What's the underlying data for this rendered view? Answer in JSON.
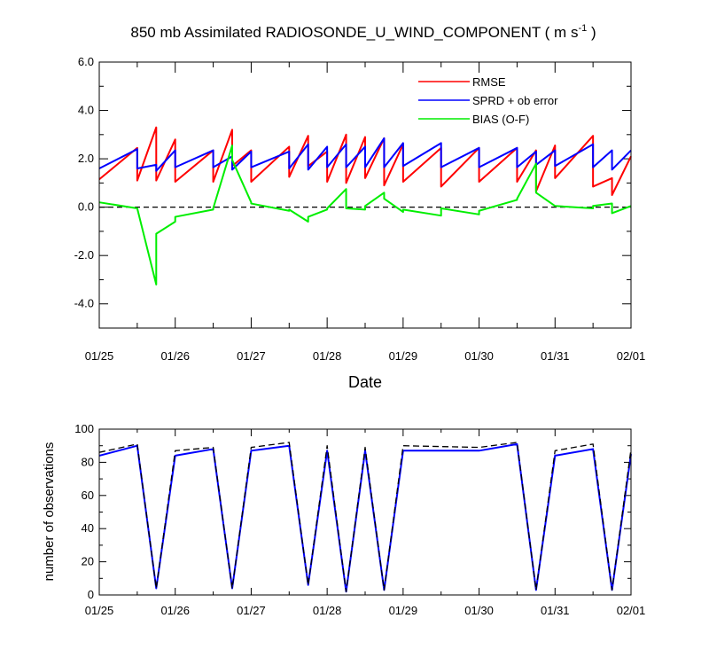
{
  "chart_data": [
    {
      "type": "line",
      "title": "850 mb Assimilated RADIOSONDE_U_WIND_COMPONENT ( m s",
      "title_exponent": "-1",
      "title_suffix": " )",
      "xlabel": "Date",
      "ylabel": "",
      "xlim": [
        0,
        7
      ],
      "ylim": [
        -5,
        6
      ],
      "x_tick_values": [
        0,
        1,
        2,
        3,
        4,
        5,
        6,
        7
      ],
      "x_tick_labels": [
        "01/25",
        "01/26",
        "01/27",
        "01/28",
        "01/29",
        "01/30",
        "01/31",
        "02/01"
      ],
      "y_tick_values": [
        -4,
        -2,
        0,
        2,
        4,
        6
      ],
      "y_tick_labels": [
        "-4.0",
        "-2.0",
        "0.0",
        "2.0",
        "4.0",
        "6.0"
      ],
      "legend_position": "top-right",
      "zero_line": "dashed",
      "series": [
        {
          "name": "RMSE",
          "color": "#ff0000",
          "x": [
            0,
            0.5,
            0.5,
            0.75,
            0.75,
            1,
            1,
            1.5,
            1.5,
            1.75,
            1.75,
            2,
            2,
            2.5,
            2.5,
            2.75,
            2.75,
            3,
            3,
            3.25,
            3.25,
            3.5,
            3.5,
            3.75,
            3.75,
            4,
            4,
            4.5,
            4.5,
            5,
            5,
            5.5,
            5.5,
            5.75,
            5.75,
            6,
            6,
            6.5,
            6.5,
            6.75,
            6.75,
            7
          ],
          "y": [
            1.15,
            2.45,
            1.1,
            3.3,
            1.1,
            2.8,
            1.05,
            2.35,
            1.05,
            3.2,
            1.7,
            2.35,
            1.05,
            2.5,
            1.25,
            2.95,
            1.7,
            2.3,
            1.05,
            3.0,
            1.0,
            2.9,
            1.2,
            2.85,
            0.9,
            2.6,
            1.05,
            2.45,
            0.85,
            2.45,
            1.05,
            2.45,
            1.05,
            2.35,
            0.65,
            2.55,
            1.2,
            2.95,
            0.85,
            1.2,
            0.5,
            2.1
          ]
        },
        {
          "name": "SPRD + ob error",
          "color": "#0000ff",
          "x": [
            0,
            0.5,
            0.5,
            0.75,
            0.75,
            1,
            1,
            1.5,
            1.5,
            1.75,
            1.75,
            2,
            2,
            2.5,
            2.5,
            2.75,
            2.75,
            3,
            3,
            3.25,
            3.25,
            3.5,
            3.5,
            3.75,
            3.75,
            4,
            4,
            4.5,
            4.5,
            5,
            5,
            5.5,
            5.5,
            5.75,
            5.75,
            6,
            6,
            6.5,
            6.5,
            6.75,
            6.75,
            7
          ],
          "y": [
            1.6,
            2.4,
            1.6,
            1.75,
            1.5,
            2.35,
            1.65,
            2.35,
            1.65,
            2.1,
            1.55,
            2.3,
            1.65,
            2.3,
            1.6,
            2.6,
            1.55,
            2.5,
            1.65,
            2.6,
            1.65,
            2.5,
            1.65,
            2.85,
            1.65,
            2.65,
            1.7,
            2.65,
            1.65,
            2.45,
            1.65,
            2.45,
            1.65,
            2.3,
            1.75,
            2.35,
            1.7,
            2.6,
            1.65,
            2.35,
            1.55,
            2.35
          ]
        },
        {
          "name": "BIAS (O-F)",
          "color": "#00ee00",
          "x": [
            0,
            0.5,
            0.5,
            0.75,
            0.75,
            1,
            1,
            1.5,
            1.5,
            1.75,
            1.75,
            2,
            2,
            2.5,
            2.5,
            2.75,
            2.75,
            3,
            3,
            3.25,
            3.25,
            3.5,
            3.5,
            3.75,
            3.75,
            4,
            4,
            4.5,
            4.5,
            5,
            5,
            5.5,
            5.5,
            5.75,
            5.75,
            6,
            6,
            6.5,
            6.5,
            6.75,
            6.75,
            7
          ],
          "y": [
            0.2,
            -0.05,
            -0.05,
            -3.2,
            -1.1,
            -0.6,
            -0.4,
            -0.1,
            -0.05,
            2.55,
            1.95,
            0.2,
            0.15,
            -0.15,
            -0.1,
            -0.6,
            -0.4,
            -0.1,
            -0.05,
            0.75,
            -0.05,
            -0.1,
            0.05,
            0.6,
            0.35,
            -0.2,
            -0.1,
            -0.35,
            -0.05,
            -0.3,
            -0.15,
            0.3,
            0.35,
            1.8,
            0.6,
            0.05,
            0.05,
            -0.05,
            0.05,
            0.15,
            -0.25,
            0.05
          ]
        }
      ]
    },
    {
      "type": "line",
      "title": "",
      "xlabel": "",
      "ylabel": "number of observations",
      "xlim": [
        0,
        7
      ],
      "ylim": [
        0,
        100
      ],
      "x_tick_values": [
        0,
        1,
        2,
        3,
        4,
        5,
        6,
        7
      ],
      "x_tick_labels": [
        "01/25",
        "01/26",
        "01/27",
        "01/28",
        "01/29",
        "01/30",
        "01/31",
        "02/01"
      ],
      "y_tick_values": [
        0,
        20,
        40,
        60,
        80,
        100
      ],
      "y_tick_labels": [
        "0",
        "20",
        "40",
        "60",
        "80",
        "100"
      ],
      "series": [
        {
          "style": "dashed",
          "color": "#000000",
          "x": [
            0,
            0.5,
            0.75,
            1,
            1.5,
            1.75,
            2,
            2.5,
            2.75,
            3,
            3.25,
            3.5,
            3.75,
            4,
            5,
            5.5,
            5.75,
            6,
            6.5,
            6.75,
            7
          ],
          "y": [
            86,
            91,
            4,
            87,
            89,
            4,
            89,
            92,
            6,
            90,
            2,
            89,
            3,
            90,
            89,
            92,
            3,
            87,
            91,
            3,
            88
          ]
        },
        {
          "style": "solid",
          "color": "#0000ff",
          "x": [
            0,
            0.5,
            0.75,
            1,
            1.5,
            1.75,
            2,
            2.5,
            2.75,
            3,
            3.25,
            3.5,
            3.75,
            4,
            5,
            5.5,
            5.75,
            6,
            6.5,
            6.75,
            7
          ],
          "y": [
            84,
            90,
            4,
            84,
            88,
            4,
            87,
            90,
            6,
            87,
            2,
            87,
            3,
            87,
            87,
            91,
            3,
            84,
            88,
            3,
            85
          ]
        }
      ]
    }
  ]
}
